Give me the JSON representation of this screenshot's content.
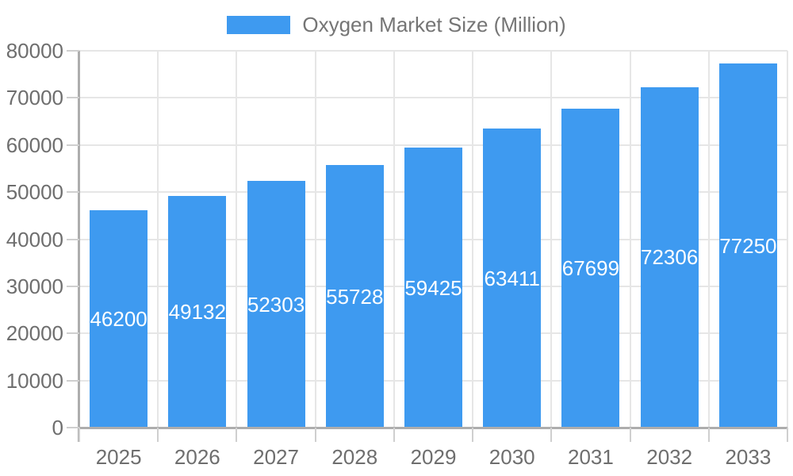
{
  "chart_data": {
    "type": "bar",
    "title": "Oxygen Market Size (Million)",
    "legend": [
      "Oxygen Market Size (Million)"
    ],
    "legend_position": "top",
    "categories": [
      "2025",
      "2026",
      "2027",
      "2028",
      "2029",
      "2030",
      "2031",
      "2032",
      "2033"
    ],
    "series": [
      {
        "name": "Oxygen Market Size (Million)",
        "values": [
          46200,
          49132,
          52303,
          55728,
          59425,
          63411,
          67699,
          72306,
          77250
        ]
      }
    ],
    "bar_labels": [
      "46200",
      "49132",
      "52303",
      "55728",
      "59425",
      "63411",
      "67699",
      "72306",
      "77250"
    ],
    "bar_labels_position": "inside-middle",
    "xlabel": "",
    "ylabel": "",
    "ylim": [
      0,
      80000
    ],
    "ytick_step": 10000,
    "yticks": [
      "0",
      "10000",
      "20000",
      "30000",
      "40000",
      "50000",
      "60000",
      "70000",
      "80000"
    ],
    "grid": true,
    "colors": {
      "bar": "#3E9AF0",
      "bar_label_text": "#FFFFFF",
      "grid_line": "#E6E6E6",
      "axis_line": "#ADADAD",
      "tick_mark": "#CFCFCF",
      "axis_text": "#6E6E6E",
      "legend_text": "#757575",
      "background": "#FFFFFF"
    }
  }
}
